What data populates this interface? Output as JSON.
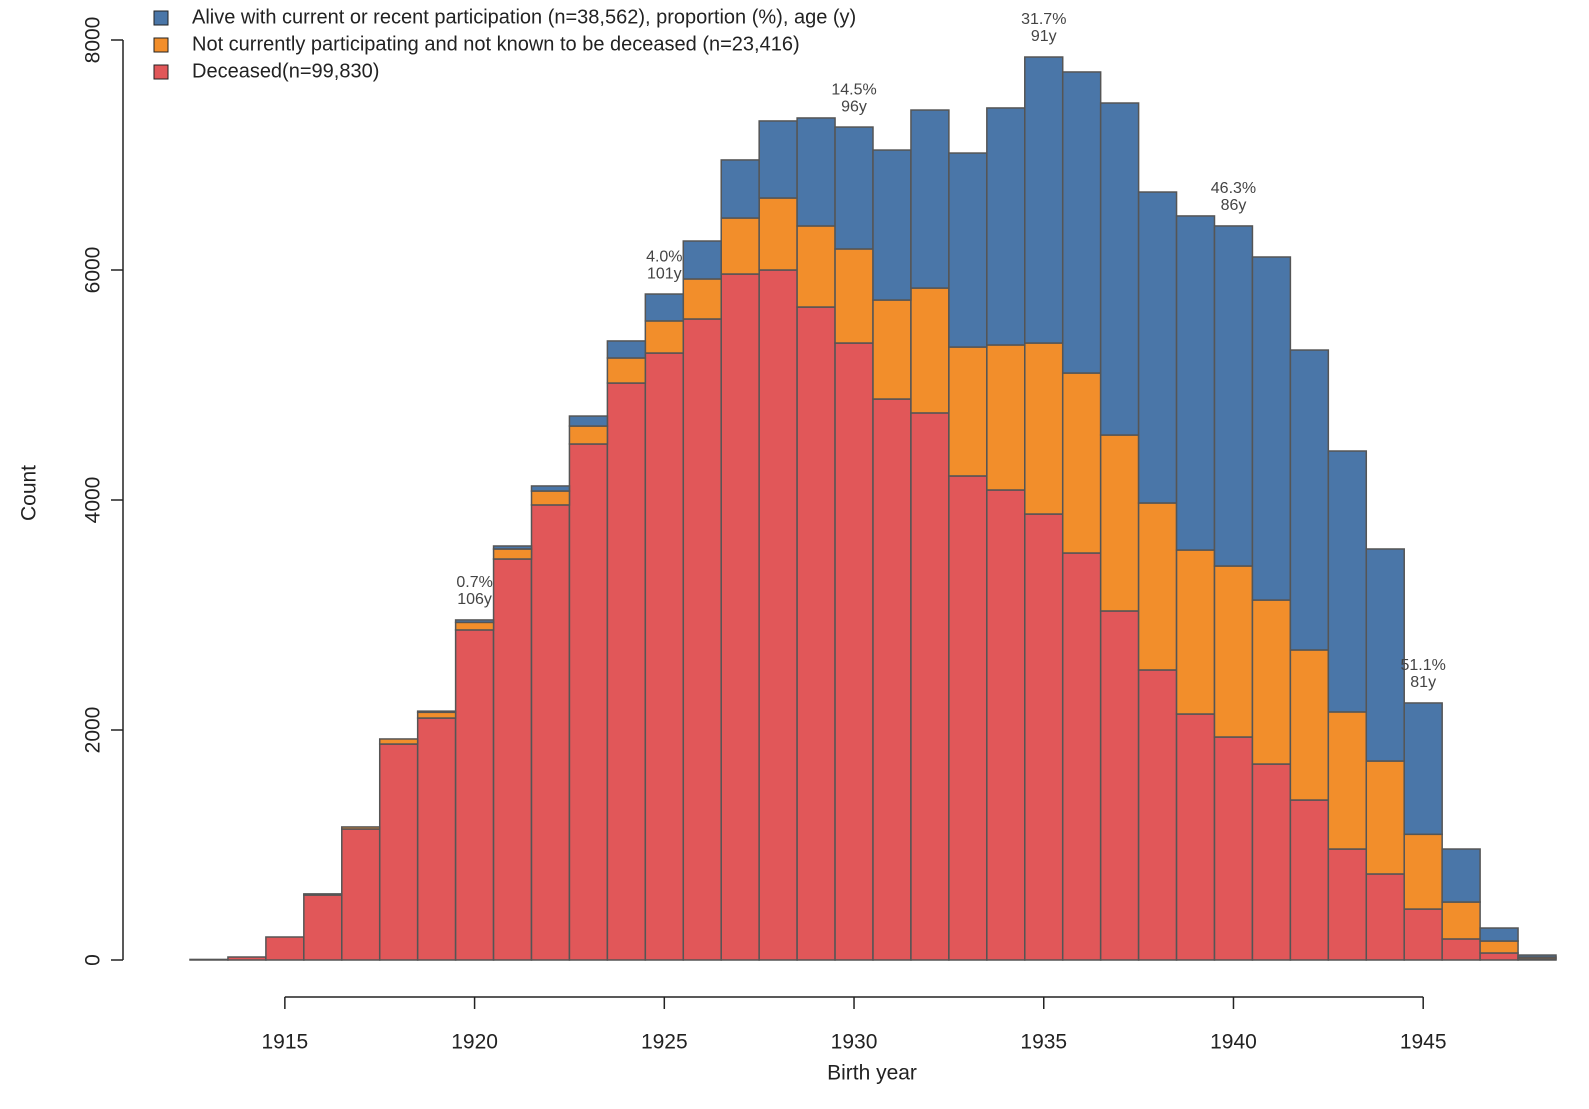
{
  "chart_data": {
    "type": "histogram",
    "xlabel": "Birth year",
    "ylabel": "Count",
    "bins": [
      1912.5,
      1913.5,
      1914.5,
      1915.5,
      1916.5,
      1917.5,
      1918.5,
      1919.5,
      1920.5,
      1921.5,
      1922.5,
      1923.5,
      1924.5,
      1925.5,
      1926.5,
      1927.5,
      1928.5,
      1929.5,
      1930.5,
      1931.5,
      1932.5,
      1933.5,
      1934.5,
      1935.5,
      1936.5,
      1937.5,
      1938.5,
      1939.5,
      1940.5,
      1941.5,
      1942.5,
      1943.5,
      1944.5,
      1945.5,
      1946.5,
      1947.5,
      1948.5
    ],
    "series": [
      {
        "name": "Alive with current or recent participation (n=38,562), proportion (%), age (y)",
        "color": "#4a76a8",
        "values": [
          0,
          0,
          0,
          0,
          0,
          0,
          10,
          21,
          26,
          44,
          87,
          148,
          234,
          330,
          505,
          670,
          939,
          1060,
          1304,
          1548,
          1687,
          2061,
          2487,
          2618,
          2887,
          2704,
          2905,
          2957,
          2983,
          2608,
          2269,
          1844,
          1142,
          461,
          113,
          18
        ]
      },
      {
        "name": "Not currently participating and not known to be deceased (n=23,416)",
        "color": "#f28e2b",
        "values": [
          0,
          0,
          0,
          10,
          18,
          44,
          50,
          66,
          87,
          121,
          156,
          218,
          279,
          348,
          487,
          626,
          705,
          818,
          861,
          1086,
          1121,
          1261,
          1487,
          1565,
          1530,
          1452,
          1426,
          1487,
          1426,
          1305,
          1192,
          982,
          650,
          321,
          104,
          15
        ]
      },
      {
        "name": "Deceased(n=99,830)",
        "color": "#e15759",
        "values": [
          5,
          26,
          200,
          565,
          1139,
          1878,
          2104,
          2870,
          3487,
          3957,
          4487,
          5017,
          5278,
          5574,
          5965,
          6000,
          5678,
          5365,
          4878,
          4757,
          4209,
          4087,
          3878,
          3539,
          3035,
          2522,
          2139,
          1939,
          1704,
          1391,
          965,
          748,
          443,
          183,
          61,
          10
        ]
      }
    ],
    "annotations": [
      {
        "x": 1920,
        "label": "0.7%",
        "sublabel": "106y"
      },
      {
        "x": 1925,
        "label": "4.0%",
        "sublabel": "101y"
      },
      {
        "x": 1930,
        "label": "14.5%",
        "sublabel": "96y"
      },
      {
        "x": 1935,
        "label": "31.7%",
        "sublabel": "91y"
      },
      {
        "x": 1940,
        "label": "46.3%",
        "sublabel": "86y"
      },
      {
        "x": 1945,
        "label": "51.1%",
        "sublabel": "81y"
      }
    ],
    "xlim": [
      1912.5,
      1948.5
    ],
    "xticks": [
      1915,
      1920,
      1925,
      1930,
      1935,
      1940,
      1945
    ],
    "ylim": [
      0,
      8000
    ],
    "yticks": [
      0,
      2000,
      4000,
      6000,
      8000
    ],
    "legend": "top-left"
  }
}
